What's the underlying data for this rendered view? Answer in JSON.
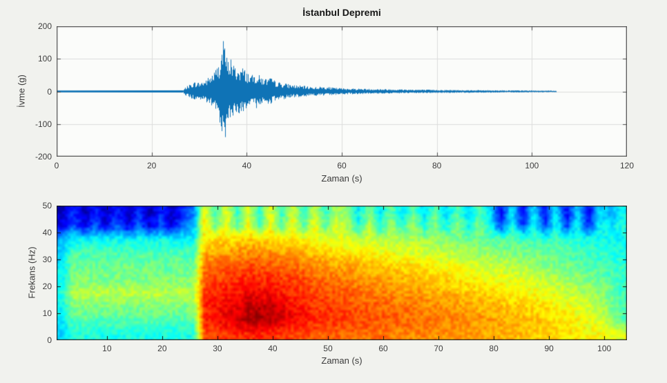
{
  "figure": {
    "kind": "matlab-style figure, seismogram with spectrogram"
  },
  "colors": {
    "figure_bg": "#f1f2ee",
    "plot_bg": "#fbfcfa",
    "grid": "#dcdcdc",
    "axis_border": "#4a4a4a",
    "tick_text": "#3d3d3d",
    "trace_blue": "#0f73b6",
    "spec_border": "#222222",
    "spec_tick": "#111111"
  },
  "chart_data": [
    {
      "type": "line",
      "title": "İstanbul Depremi",
      "xlabel": "Zaman (s)",
      "ylabel": "İvme (g)",
      "xlim": [
        0,
        120
      ],
      "ylim": [
        -200,
        200
      ],
      "xticks": [
        0,
        20,
        40,
        60,
        80,
        100,
        120
      ],
      "yticks": [
        200,
        100,
        0,
        -100,
        -200
      ],
      "grid": true,
      "line_color": "#0f73b6",
      "signal": {
        "onset_s": 26.5,
        "end_s": 105,
        "peak_s": 35,
        "peak_g": 155,
        "min_g": -140,
        "envelope_t_amp": [
          [
            0,
            1.5
          ],
          [
            26.5,
            2
          ],
          [
            27,
            12
          ],
          [
            28,
            22
          ],
          [
            29,
            30
          ],
          [
            30,
            28
          ],
          [
            31,
            34
          ],
          [
            32,
            45
          ],
          [
            33,
            60
          ],
          [
            34,
            85
          ],
          [
            34.6,
            125
          ],
          [
            35,
            155
          ],
          [
            35.4,
            130
          ],
          [
            36,
            95
          ],
          [
            36.6,
            110
          ],
          [
            37,
            85
          ],
          [
            38,
            72
          ],
          [
            39,
            76
          ],
          [
            40,
            62
          ],
          [
            41,
            50
          ],
          [
            42,
            56
          ],
          [
            43,
            46
          ],
          [
            44,
            40
          ],
          [
            45,
            42
          ],
          [
            46,
            32
          ],
          [
            47,
            28
          ],
          [
            48,
            25
          ],
          [
            50,
            20
          ],
          [
            52,
            17
          ],
          [
            54,
            14
          ],
          [
            56,
            15
          ],
          [
            58,
            12
          ],
          [
            60,
            10
          ],
          [
            63,
            9
          ],
          [
            66,
            8
          ],
          [
            70,
            7
          ],
          [
            75,
            6
          ],
          [
            80,
            5
          ],
          [
            85,
            4.5
          ],
          [
            90,
            4
          ],
          [
            95,
            3.5
          ],
          [
            100,
            3
          ],
          [
            105,
            2.5
          ]
        ]
      }
    },
    {
      "type": "heatmap",
      "xlabel": "Zaman (s)",
      "ylabel": "Frekans (Hz)",
      "xlim": [
        0.9,
        104.1
      ],
      "ylim": [
        0,
        50
      ],
      "xticks": [
        10,
        20,
        30,
        40,
        50,
        60,
        70,
        80,
        90,
        100
      ],
      "yticks": [
        0,
        10,
        20,
        30,
        40,
        50
      ],
      "colormap": "jet",
      "time_bins": {
        "t_start": 0.9,
        "t_end": 104.1,
        "n": 52
      },
      "freq_bins": {
        "f_start": 0,
        "f_end": 50,
        "n": 10,
        "rows_bottom_to_top": true
      },
      "intensity_scale": "0 = weakest (dark blue), 1 = strongest (dark red)",
      "values": [
        [
          0.34,
          0.4,
          0.4,
          0.4,
          0.4,
          0.4,
          0.4,
          0.4,
          0.4,
          0.4,
          0.4,
          0.4,
          0.4,
          0.8,
          0.82,
          0.83,
          0.84,
          0.84,
          0.84,
          0.83,
          0.82,
          0.81,
          0.8,
          0.79,
          0.78,
          0.78,
          0.77,
          0.77,
          0.76,
          0.76,
          0.75,
          0.75,
          0.74,
          0.74,
          0.73,
          0.73,
          0.72,
          0.72,
          0.71,
          0.71,
          0.7,
          0.7,
          0.69,
          0.68,
          0.67,
          0.66,
          0.65,
          0.64,
          0.63,
          0.62,
          0.61,
          0.6
        ],
        [
          0.36,
          0.46,
          0.46,
          0.46,
          0.46,
          0.46,
          0.46,
          0.46,
          0.46,
          0.46,
          0.46,
          0.46,
          0.46,
          0.84,
          0.87,
          0.89,
          0.92,
          0.95,
          0.96,
          0.95,
          0.92,
          0.89,
          0.86,
          0.84,
          0.83,
          0.82,
          0.81,
          0.8,
          0.8,
          0.79,
          0.78,
          0.78,
          0.77,
          0.76,
          0.76,
          0.75,
          0.74,
          0.74,
          0.73,
          0.72,
          0.71,
          0.7,
          0.69,
          0.68,
          0.67,
          0.66,
          0.64,
          0.63,
          0.61,
          0.58,
          0.52,
          0.46
        ],
        [
          0.38,
          0.5,
          0.5,
          0.5,
          0.5,
          0.5,
          0.5,
          0.5,
          0.5,
          0.5,
          0.5,
          0.5,
          0.5,
          0.84,
          0.86,
          0.88,
          0.9,
          0.93,
          0.94,
          0.93,
          0.9,
          0.87,
          0.85,
          0.83,
          0.82,
          0.81,
          0.8,
          0.79,
          0.78,
          0.78,
          0.77,
          0.76,
          0.75,
          0.74,
          0.74,
          0.73,
          0.72,
          0.71,
          0.7,
          0.7,
          0.69,
          0.68,
          0.67,
          0.66,
          0.65,
          0.63,
          0.62,
          0.6,
          0.58,
          0.55,
          0.5,
          0.45
        ],
        [
          0.4,
          0.56,
          0.56,
          0.56,
          0.56,
          0.56,
          0.56,
          0.56,
          0.56,
          0.56,
          0.56,
          0.56,
          0.56,
          0.82,
          0.84,
          0.85,
          0.86,
          0.88,
          0.88,
          0.87,
          0.85,
          0.84,
          0.82,
          0.81,
          0.8,
          0.79,
          0.78,
          0.77,
          0.76,
          0.75,
          0.74,
          0.73,
          0.73,
          0.72,
          0.71,
          0.7,
          0.69,
          0.68,
          0.67,
          0.66,
          0.65,
          0.64,
          0.63,
          0.62,
          0.61,
          0.6,
          0.58,
          0.56,
          0.54,
          0.52,
          0.48,
          0.44
        ],
        [
          0.38,
          0.5,
          0.5,
          0.5,
          0.5,
          0.5,
          0.5,
          0.5,
          0.5,
          0.5,
          0.5,
          0.5,
          0.5,
          0.8,
          0.81,
          0.82,
          0.83,
          0.84,
          0.84,
          0.83,
          0.82,
          0.81,
          0.8,
          0.78,
          0.77,
          0.76,
          0.75,
          0.74,
          0.73,
          0.72,
          0.71,
          0.7,
          0.69,
          0.68,
          0.67,
          0.66,
          0.65,
          0.64,
          0.63,
          0.62,
          0.61,
          0.6,
          0.59,
          0.58,
          0.56,
          0.55,
          0.53,
          0.52,
          0.5,
          0.48,
          0.46,
          0.43
        ],
        [
          0.36,
          0.48,
          0.48,
          0.48,
          0.48,
          0.48,
          0.48,
          0.48,
          0.48,
          0.48,
          0.48,
          0.48,
          0.48,
          0.76,
          0.77,
          0.78,
          0.79,
          0.8,
          0.8,
          0.79,
          0.78,
          0.77,
          0.76,
          0.74,
          0.73,
          0.72,
          0.71,
          0.7,
          0.69,
          0.68,
          0.67,
          0.66,
          0.65,
          0.64,
          0.63,
          0.62,
          0.61,
          0.6,
          0.59,
          0.58,
          0.57,
          0.56,
          0.55,
          0.54,
          0.52,
          0.51,
          0.49,
          0.48,
          0.46,
          0.45,
          0.43,
          0.42
        ],
        [
          0.34,
          0.45,
          0.45,
          0.45,
          0.45,
          0.45,
          0.45,
          0.45,
          0.45,
          0.45,
          0.45,
          0.45,
          0.45,
          0.7,
          0.71,
          0.72,
          0.73,
          0.74,
          0.74,
          0.73,
          0.72,
          0.71,
          0.7,
          0.68,
          0.67,
          0.66,
          0.65,
          0.64,
          0.63,
          0.62,
          0.61,
          0.6,
          0.59,
          0.58,
          0.57,
          0.56,
          0.55,
          0.54,
          0.53,
          0.52,
          0.51,
          0.5,
          0.49,
          0.48,
          0.47,
          0.46,
          0.45,
          0.44,
          0.43,
          0.42,
          0.41,
          0.4
        ],
        [
          0.3,
          0.38,
          0.38,
          0.38,
          0.38,
          0.38,
          0.38,
          0.38,
          0.38,
          0.38,
          0.38,
          0.38,
          0.38,
          0.64,
          0.65,
          0.66,
          0.66,
          0.67,
          0.67,
          0.66,
          0.65,
          0.64,
          0.63,
          0.62,
          0.61,
          0.6,
          0.59,
          0.58,
          0.57,
          0.56,
          0.56,
          0.55,
          0.54,
          0.53,
          0.52,
          0.51,
          0.5,
          0.49,
          0.48,
          0.47,
          0.46,
          0.46,
          0.45,
          0.44,
          0.43,
          0.43,
          0.42,
          0.41,
          0.4,
          0.4,
          0.39,
          0.38
        ],
        [
          0.1,
          0.22,
          0.1,
          0.22,
          0.1,
          0.22,
          0.1,
          0.22,
          0.1,
          0.22,
          0.1,
          0.22,
          0.3,
          0.66,
          0.48,
          0.62,
          0.46,
          0.62,
          0.46,
          0.62,
          0.46,
          0.62,
          0.46,
          0.62,
          0.46,
          0.6,
          0.55,
          0.4,
          0.55,
          0.4,
          0.55,
          0.4,
          0.55,
          0.4,
          0.52,
          0.38,
          0.52,
          0.38,
          0.5,
          0.4,
          0.18,
          0.4,
          0.18,
          0.4,
          0.18,
          0.4,
          0.18,
          0.38,
          0.16,
          0.38,
          0.35,
          0.4
        ],
        [
          0.06,
          0.16,
          0.06,
          0.16,
          0.06,
          0.16,
          0.06,
          0.16,
          0.06,
          0.16,
          0.06,
          0.16,
          0.25,
          0.62,
          0.44,
          0.6,
          0.42,
          0.6,
          0.42,
          0.6,
          0.42,
          0.58,
          0.42,
          0.58,
          0.42,
          0.55,
          0.5,
          0.36,
          0.5,
          0.36,
          0.48,
          0.35,
          0.48,
          0.35,
          0.46,
          0.34,
          0.46,
          0.34,
          0.45,
          0.36,
          0.12,
          0.36,
          0.12,
          0.36,
          0.12,
          0.36,
          0.12,
          0.34,
          0.1,
          0.34,
          0.3,
          0.38
        ]
      ]
    }
  ]
}
